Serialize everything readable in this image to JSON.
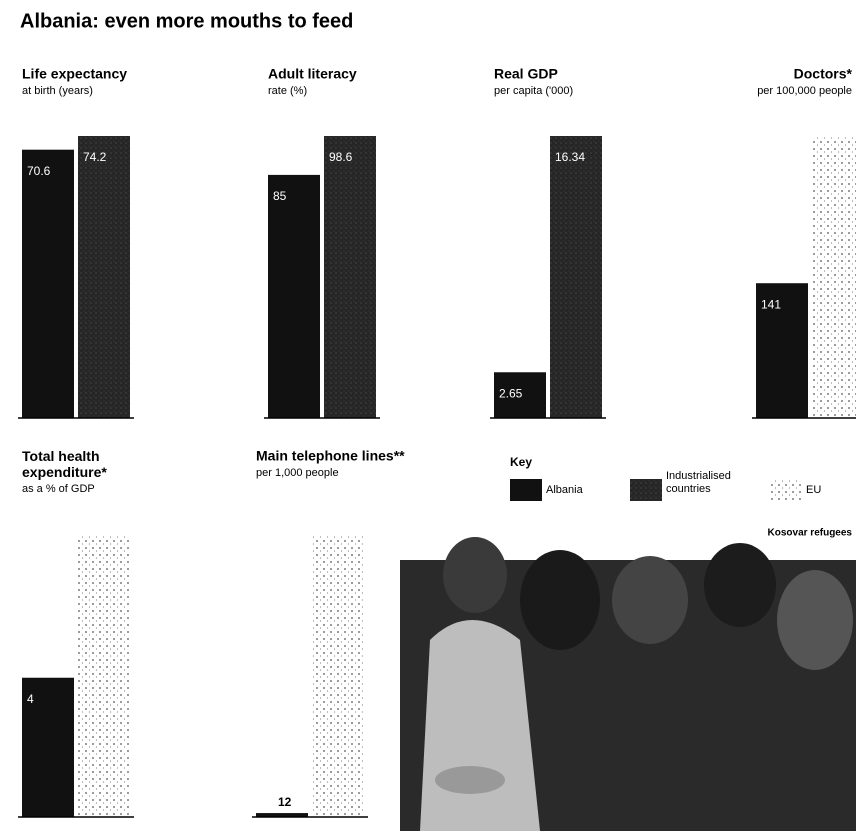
{
  "title": "Albania: even more mouths to feed",
  "key": {
    "title": "Key",
    "items": [
      {
        "name": "Albania",
        "color": "#111111"
      },
      {
        "name": "Industrialised countries",
        "color": "#262626"
      },
      {
        "name": "EU",
        "color": "#ffffff"
      }
    ]
  },
  "photo_caption": "Kosovar refugees",
  "chart_data": [
    {
      "type": "bar",
      "title": "Life expectancy",
      "subtitle": "at birth (years)",
      "values": [
        70.6,
        74.2
      ],
      "colors": [
        "#111111",
        "#262626"
      ]
    },
    {
      "type": "bar",
      "title": "Adult literacy",
      "subtitle": "rate (%)",
      "values": [
        85,
        98.6
      ],
      "colors": [
        "#111111",
        "#262626"
      ]
    },
    {
      "type": "bar",
      "title": "Real GDP",
      "subtitle": "per capita ('000)",
      "values": [
        2.65,
        16.34
      ],
      "colors": [
        "#111111",
        "#262626"
      ]
    },
    {
      "type": "bar",
      "title": "Doctors*",
      "subtitle": "per 100,000 people",
      "values": [
        141,
        295
      ],
      "value_labels": [
        "141",
        null
      ],
      "colors": [
        "#111111",
        "#ffffff"
      ]
    },
    {
      "type": "bar",
      "title": "Total health expenditure*",
      "subtitle": "as a % of GDP",
      "values": [
        4,
        8.1
      ],
      "value_labels": [
        "4",
        null
      ],
      "colors": [
        "#111111",
        "#ffffff"
      ]
    },
    {
      "type": "bar",
      "title": "Main telephone lines**",
      "subtitle": "per 1,000 people",
      "values": [
        12,
        860
      ],
      "value_labels": [
        "12",
        null
      ],
      "colors": [
        "#111111",
        "#ffffff"
      ]
    }
  ]
}
